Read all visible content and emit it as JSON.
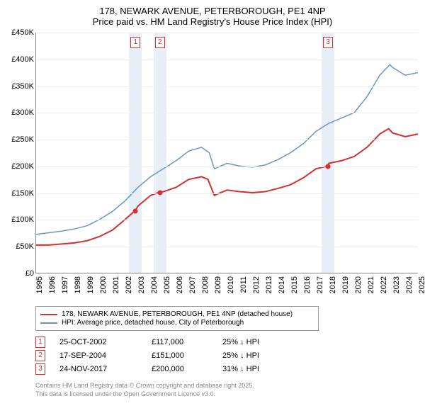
{
  "title": {
    "line1": "178, NEWARK AVENUE, PETERBOROUGH, PE1 4NP",
    "line2": "Price paid vs. HM Land Registry's House Price Index (HPI)"
  },
  "chart": {
    "type": "line",
    "background_color": "#ffffff",
    "grid_color": "#eeeeee",
    "axis_color": "#888888",
    "band_color": "#e8eef5",
    "font_size_axis": 11,
    "y": {
      "min": 0,
      "max": 450000,
      "tick_step": 50000,
      "ticks": [
        "£0",
        "£50K",
        "£100K",
        "£150K",
        "£200K",
        "£250K",
        "£300K",
        "£350K",
        "£400K",
        "£450K"
      ]
    },
    "x": {
      "min": 1995,
      "max": 2025,
      "ticks": [
        "1995",
        "1996",
        "1997",
        "1998",
        "1999",
        "2000",
        "2001",
        "2002",
        "2003",
        "2004",
        "2005",
        "2006",
        "2007",
        "2008",
        "2009",
        "2010",
        "2011",
        "2012",
        "2013",
        "2014",
        "2015",
        "2016",
        "2017",
        "2018",
        "2019",
        "2020",
        "2021",
        "2022",
        "2023",
        "2024",
        "2025"
      ]
    },
    "series": [
      {
        "name": "178, NEWARK AVENUE, PETERBOROUGH, PE1 4NP (detached house)",
        "color": "#d32f2f",
        "line_width": 2,
        "data": [
          [
            1995,
            52000
          ],
          [
            1996,
            52000
          ],
          [
            1997,
            54000
          ],
          [
            1998,
            56000
          ],
          [
            1999,
            60000
          ],
          [
            2000,
            68000
          ],
          [
            2001,
            80000
          ],
          [
            2002,
            100000
          ],
          [
            2002.8,
            117000
          ],
          [
            2003,
            125000
          ],
          [
            2004,
            145000
          ],
          [
            2004.7,
            151000
          ],
          [
            2005,
            152000
          ],
          [
            2006,
            160000
          ],
          [
            2007,
            175000
          ],
          [
            2008,
            180000
          ],
          [
            2008.5,
            175000
          ],
          [
            2009,
            145000
          ],
          [
            2010,
            155000
          ],
          [
            2011,
            152000
          ],
          [
            2012,
            150000
          ],
          [
            2013,
            152000
          ],
          [
            2014,
            158000
          ],
          [
            2015,
            165000
          ],
          [
            2016,
            178000
          ],
          [
            2017,
            195000
          ],
          [
            2017.9,
            200000
          ],
          [
            2018,
            205000
          ],
          [
            2019,
            210000
          ],
          [
            2020,
            218000
          ],
          [
            2021,
            235000
          ],
          [
            2022,
            260000
          ],
          [
            2022.7,
            270000
          ],
          [
            2023,
            262000
          ],
          [
            2024,
            255000
          ],
          [
            2025,
            260000
          ]
        ]
      },
      {
        "name": "HPI: Average price, detached house, City of Peterborough",
        "color": "#6b93c9",
        "line_width": 1.5,
        "data": [
          [
            1995,
            72000
          ],
          [
            1996,
            75000
          ],
          [
            1997,
            78000
          ],
          [
            1998,
            82000
          ],
          [
            1999,
            88000
          ],
          [
            2000,
            100000
          ],
          [
            2001,
            115000
          ],
          [
            2002,
            135000
          ],
          [
            2003,
            160000
          ],
          [
            2004,
            180000
          ],
          [
            2005,
            195000
          ],
          [
            2006,
            210000
          ],
          [
            2007,
            228000
          ],
          [
            2008,
            235000
          ],
          [
            2008.6,
            225000
          ],
          [
            2009,
            195000
          ],
          [
            2010,
            205000
          ],
          [
            2011,
            200000
          ],
          [
            2012,
            198000
          ],
          [
            2013,
            202000
          ],
          [
            2014,
            212000
          ],
          [
            2015,
            225000
          ],
          [
            2016,
            242000
          ],
          [
            2017,
            265000
          ],
          [
            2018,
            280000
          ],
          [
            2019,
            290000
          ],
          [
            2020,
            300000
          ],
          [
            2021,
            330000
          ],
          [
            2022,
            370000
          ],
          [
            2022.8,
            390000
          ],
          [
            2023,
            385000
          ],
          [
            2024,
            370000
          ],
          [
            2025,
            375000
          ]
        ]
      }
    ],
    "sale_markers": [
      {
        "num": "1",
        "year": 2002.8,
        "price": 117000
      },
      {
        "num": "2",
        "year": 2004.7,
        "price": 151000
      },
      {
        "num": "3",
        "year": 2017.9,
        "price": 200000
      }
    ],
    "marker_color": "#d32f2f"
  },
  "legend": {
    "items": [
      {
        "color": "#d32f2f",
        "label": "178, NEWARK AVENUE, PETERBOROUGH, PE1 4NP (detached house)"
      },
      {
        "color": "#6b93c9",
        "label": "HPI: Average price, detached house, City of Peterborough"
      }
    ]
  },
  "sales": [
    {
      "num": "1",
      "date": "25-OCT-2002",
      "price": "£117,000",
      "diff": "25% ↓ HPI"
    },
    {
      "num": "2",
      "date": "17-SEP-2004",
      "price": "£151,000",
      "diff": "25% ↓ HPI"
    },
    {
      "num": "3",
      "date": "24-NOV-2017",
      "price": "£200,000",
      "diff": "31% ↓ HPI"
    }
  ],
  "attribution": {
    "line1": "Contains HM Land Registry data © Crown copyright and database right 2025.",
    "line2": "This data is licensed under the Open Government Licence v3.0."
  }
}
